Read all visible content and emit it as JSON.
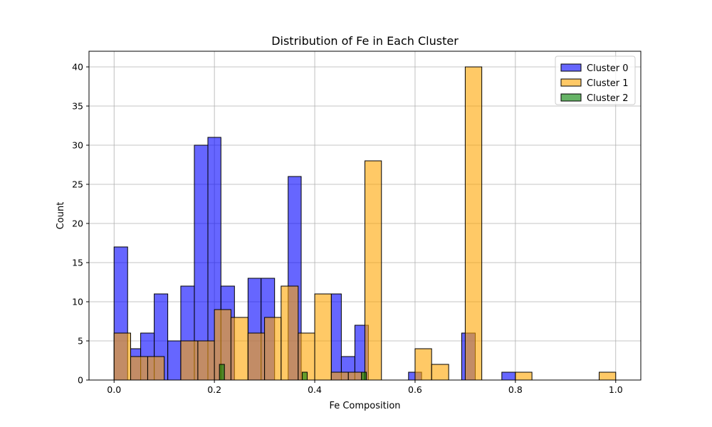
{
  "chart_data": {
    "type": "bar",
    "title": "Distribution of Fe in Each Cluster",
    "xlabel": "Fe Composition",
    "ylabel": "Count",
    "xlim": [
      -0.05,
      1.05
    ],
    "ylim": [
      0,
      42
    ],
    "xticks": [
      0.0,
      0.2,
      0.4,
      0.6,
      0.8,
      1.0
    ],
    "xtick_labels": [
      "0.0",
      "0.2",
      "0.4",
      "0.6",
      "0.8",
      "1.0"
    ],
    "yticks": [
      0,
      5,
      10,
      15,
      20,
      25,
      30,
      35,
      40
    ],
    "ytick_labels": [
      "0",
      "5",
      "10",
      "15",
      "20",
      "25",
      "30",
      "35",
      "40"
    ],
    "grid": true,
    "legend_position": "top-right",
    "series": [
      {
        "name": "Cluster 0",
        "color": "#0000ff",
        "opacity": 0.6,
        "bins": [
          {
            "x0": 0.0,
            "x1": 0.027,
            "count": 17
          },
          {
            "x0": 0.033,
            "x1": 0.053,
            "count": 4
          },
          {
            "x0": 0.053,
            "x1": 0.08,
            "count": 6
          },
          {
            "x0": 0.08,
            "x1": 0.107,
            "count": 11
          },
          {
            "x0": 0.107,
            "x1": 0.133,
            "count": 5
          },
          {
            "x0": 0.133,
            "x1": 0.16,
            "count": 12
          },
          {
            "x0": 0.16,
            "x1": 0.187,
            "count": 30
          },
          {
            "x0": 0.187,
            "x1": 0.213,
            "count": 31
          },
          {
            "x0": 0.213,
            "x1": 0.24,
            "count": 12
          },
          {
            "x0": 0.267,
            "x1": 0.293,
            "count": 13
          },
          {
            "x0": 0.293,
            "x1": 0.32,
            "count": 13
          },
          {
            "x0": 0.347,
            "x1": 0.373,
            "count": 26
          },
          {
            "x0": 0.433,
            "x1": 0.453,
            "count": 11
          },
          {
            "x0": 0.453,
            "x1": 0.48,
            "count": 3
          },
          {
            "x0": 0.48,
            "x1": 0.507,
            "count": 7
          },
          {
            "x0": 0.587,
            "x1": 0.613,
            "count": 1
          },
          {
            "x0": 0.693,
            "x1": 0.72,
            "count": 6
          },
          {
            "x0": 0.773,
            "x1": 0.8,
            "count": 1
          }
        ]
      },
      {
        "name": "Cluster 1",
        "color": "#ffa500",
        "opacity": 0.6,
        "bins": [
          {
            "x0": 0.0,
            "x1": 0.033,
            "count": 6
          },
          {
            "x0": 0.033,
            "x1": 0.067,
            "count": 3
          },
          {
            "x0": 0.067,
            "x1": 0.1,
            "count": 3
          },
          {
            "x0": 0.133,
            "x1": 0.167,
            "count": 5
          },
          {
            "x0": 0.167,
            "x1": 0.2,
            "count": 5
          },
          {
            "x0": 0.2,
            "x1": 0.233,
            "count": 9
          },
          {
            "x0": 0.233,
            "x1": 0.267,
            "count": 8
          },
          {
            "x0": 0.267,
            "x1": 0.3,
            "count": 6
          },
          {
            "x0": 0.3,
            "x1": 0.333,
            "count": 8
          },
          {
            "x0": 0.333,
            "x1": 0.367,
            "count": 12
          },
          {
            "x0": 0.367,
            "x1": 0.4,
            "count": 6
          },
          {
            "x0": 0.4,
            "x1": 0.433,
            "count": 11
          },
          {
            "x0": 0.433,
            "x1": 0.467,
            "count": 1
          },
          {
            "x0": 0.467,
            "x1": 0.5,
            "count": 1
          },
          {
            "x0": 0.5,
            "x1": 0.533,
            "count": 28
          },
          {
            "x0": 0.6,
            "x1": 0.633,
            "count": 4
          },
          {
            "x0": 0.633,
            "x1": 0.667,
            "count": 2
          },
          {
            "x0": 0.7,
            "x1": 0.733,
            "count": 40
          },
          {
            "x0": 0.8,
            "x1": 0.833,
            "count": 1
          },
          {
            "x0": 0.967,
            "x1": 1.0,
            "count": 1
          }
        ]
      },
      {
        "name": "Cluster 2",
        "color": "#008000",
        "opacity": 0.6,
        "bins": [
          {
            "x0": 0.21,
            "x1": 0.22,
            "count": 2
          },
          {
            "x0": 0.375,
            "x1": 0.385,
            "count": 1
          },
          {
            "x0": 0.493,
            "x1": 0.503,
            "count": 1
          }
        ]
      }
    ]
  }
}
